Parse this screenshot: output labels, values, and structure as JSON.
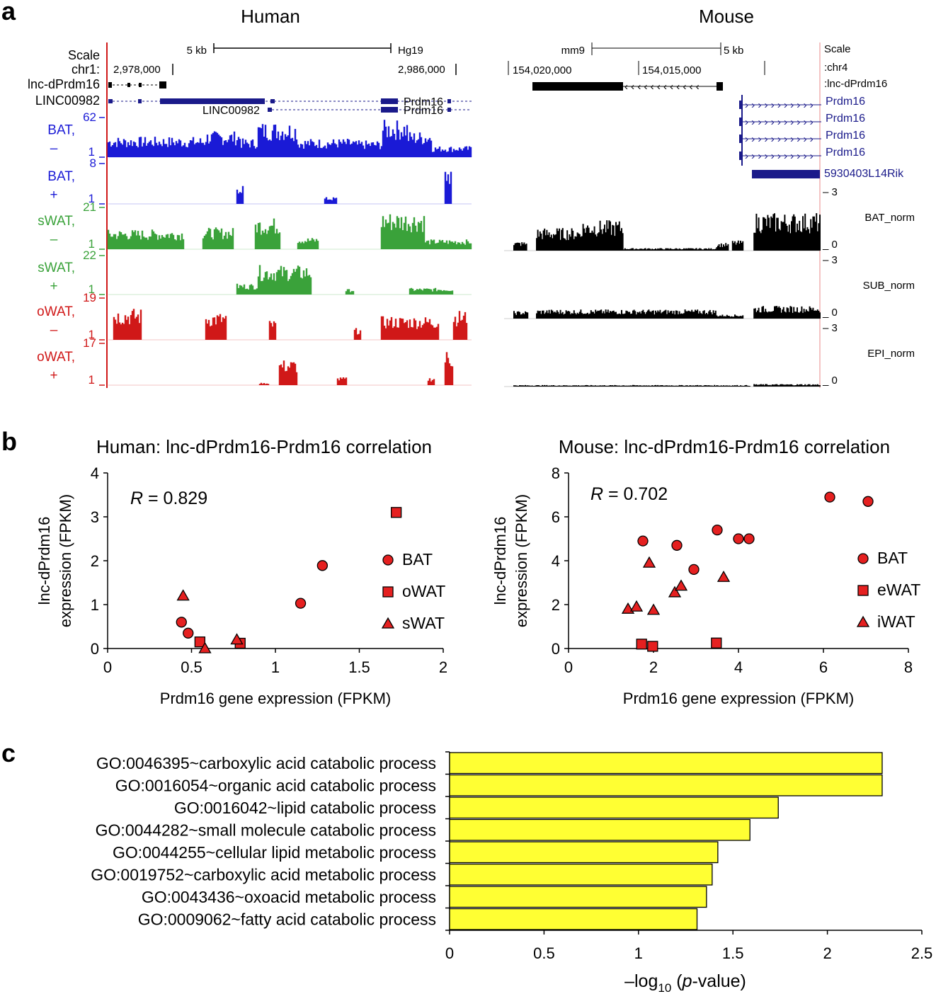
{
  "panels": {
    "a": "a",
    "b": "b",
    "c": "c"
  },
  "panel_a": {
    "human": {
      "title": "Human",
      "scale_label": "Scale",
      "scale_value": "5 kb",
      "assembly": "Hg19",
      "chrom_label": "chr1:",
      "coord_left": "2,978,000",
      "coord_right": "2,986,000",
      "genes": {
        "lnc": "lnc-dPrdm16",
        "linc": "LINC00982",
        "linc2": "LINC00982",
        "prdm1": "Prdm16",
        "prdm2": "Prdm16"
      },
      "tracks": [
        {
          "name": "BAT,",
          "strand": "–",
          "max": "62",
          "min": "1",
          "color": "#1a1ad6"
        },
        {
          "name": "BAT,",
          "strand": "+",
          "max": "8",
          "min": "1",
          "color": "#1a1ad6"
        },
        {
          "name": "sWAT,",
          "strand": "–",
          "max": "21",
          "min": "1",
          "color": "#3aa23a"
        },
        {
          "name": "sWAT,",
          "strand": "+",
          "max": "22",
          "min": "1",
          "color": "#3aa23a"
        },
        {
          "name": "oWAT,",
          "strand": "–",
          "max": "19",
          "min": "1",
          "color": "#d01818"
        },
        {
          "name": "oWAT,",
          "strand": "+",
          "max": "17",
          "min": "1",
          "color": "#d01818"
        }
      ]
    },
    "mouse": {
      "title": "Mouse",
      "assembly": "mm9",
      "scale_value": "5 kb",
      "scale_label": "Scale",
      "chrom_label": ":chr4",
      "coord_left": "154,020,000",
      "coord_right": "154,015,000",
      "genes": {
        "lnc": ":lnc-dPrdm16",
        "p1": "Prdm16",
        "p2": "Prdm16",
        "p3": "Prdm16",
        "p4": "Prdm16",
        "rik": "5930403L14Rik"
      },
      "tracks": [
        {
          "name": "BAT_norm",
          "top": "– 3",
          "bottom": "_ 0"
        },
        {
          "name": "SUB_norm",
          "top": "– 3",
          "bottom": "_ 0"
        },
        {
          "name": "EPI_norm",
          "top": "– 3",
          "bottom": "_ 0"
        }
      ]
    }
  },
  "chart_data": [
    {
      "type": "scatter",
      "title": "Human: lnc-dPrdm16-Prdm16 correlation",
      "xlabel": "Prdm16 gene expression (FPKM)",
      "ylabel_line1": "lnc-dPrdm16",
      "ylabel_line2": "expression (FPKM)",
      "annotation": {
        "r": "R",
        "eq": " = 0.829"
      },
      "xlim": [
        0,
        2
      ],
      "ylim": [
        0,
        4
      ],
      "xticks": [
        "0",
        "0.5",
        "1",
        "1.5",
        "2"
      ],
      "yticks": [
        "0",
        "1",
        "2",
        "3",
        "4"
      ],
      "series": [
        {
          "name": "BAT",
          "marker": "circle",
          "x": [
            0.44,
            0.48,
            1.15,
            1.28
          ],
          "y": [
            0.6,
            0.35,
            1.03,
            1.89
          ]
        },
        {
          "name": "oWAT",
          "marker": "square",
          "x": [
            0.55,
            0.79,
            1.72
          ],
          "y": [
            0.15,
            0.12,
            3.1
          ]
        },
        {
          "name": "sWAT",
          "marker": "triangle",
          "x": [
            0.45,
            0.58,
            0.77
          ],
          "y": [
            1.2,
            0.0,
            0.2
          ]
        }
      ]
    },
    {
      "type": "scatter",
      "title": "Mouse: lnc-dPrdm16-Prdm16 correlation",
      "xlabel": "Prdm16 gene expression (FPKM)",
      "ylabel_line1": "lnc-dPrdm16",
      "ylabel_line2": "expression (FPKM)",
      "annotation": {
        "r": "R",
        "eq": " = 0.702"
      },
      "xlim": [
        0,
        8
      ],
      "ylim": [
        0,
        8
      ],
      "xticks": [
        "0",
        "2",
        "4",
        "6",
        "8"
      ],
      "yticks": [
        "0",
        "2",
        "4",
        "6",
        "8"
      ],
      "series": [
        {
          "name": "BAT",
          "marker": "circle",
          "x": [
            1.75,
            2.55,
            2.95,
            3.5,
            4.0,
            4.25,
            6.15,
            7.05
          ],
          "y": [
            4.9,
            4.7,
            3.6,
            5.4,
            5.0,
            5.0,
            6.9,
            6.7
          ]
        },
        {
          "name": "eWAT",
          "marker": "square",
          "x": [
            1.72,
            1.98,
            3.48
          ],
          "y": [
            0.2,
            0.1,
            0.25
          ]
        },
        {
          "name": "iWAT",
          "marker": "triangle",
          "x": [
            1.4,
            1.6,
            1.9,
            2.0,
            2.5,
            2.65,
            3.65
          ],
          "y": [
            1.8,
            1.9,
            3.9,
            1.75,
            2.55,
            2.85,
            3.25
          ]
        }
      ]
    },
    {
      "type": "bar",
      "orientation": "horizontal",
      "xlabel_pre": "–log",
      "xlabel_sub": "10",
      "xlabel_mid": " (",
      "xlabel_italic": "p",
      "xlabel_post": "-value)",
      "xlim": [
        0,
        2.5
      ],
      "xticks": [
        "0",
        "0.5",
        "1",
        "1.5",
        "2",
        "2.5"
      ],
      "categories": [
        "GO:0046395~carboxylic acid catabolic process",
        "GO:0016054~organic acid catabolic process",
        "GO:0016042~lipid catabolic process",
        "GO:0044282~small molecule catabolic process",
        "GO:0044255~cellular lipid metabolic process",
        "GO:0019752~carboxylic acid metabolic process",
        "GO:0043436~oxoacid metabolic process",
        "GO:0009062~fatty acid catabolic process"
      ],
      "values": [
        2.29,
        2.29,
        1.74,
        1.59,
        1.42,
        1.39,
        1.36,
        1.31
      ],
      "bar_color": "#ffff33"
    }
  ]
}
